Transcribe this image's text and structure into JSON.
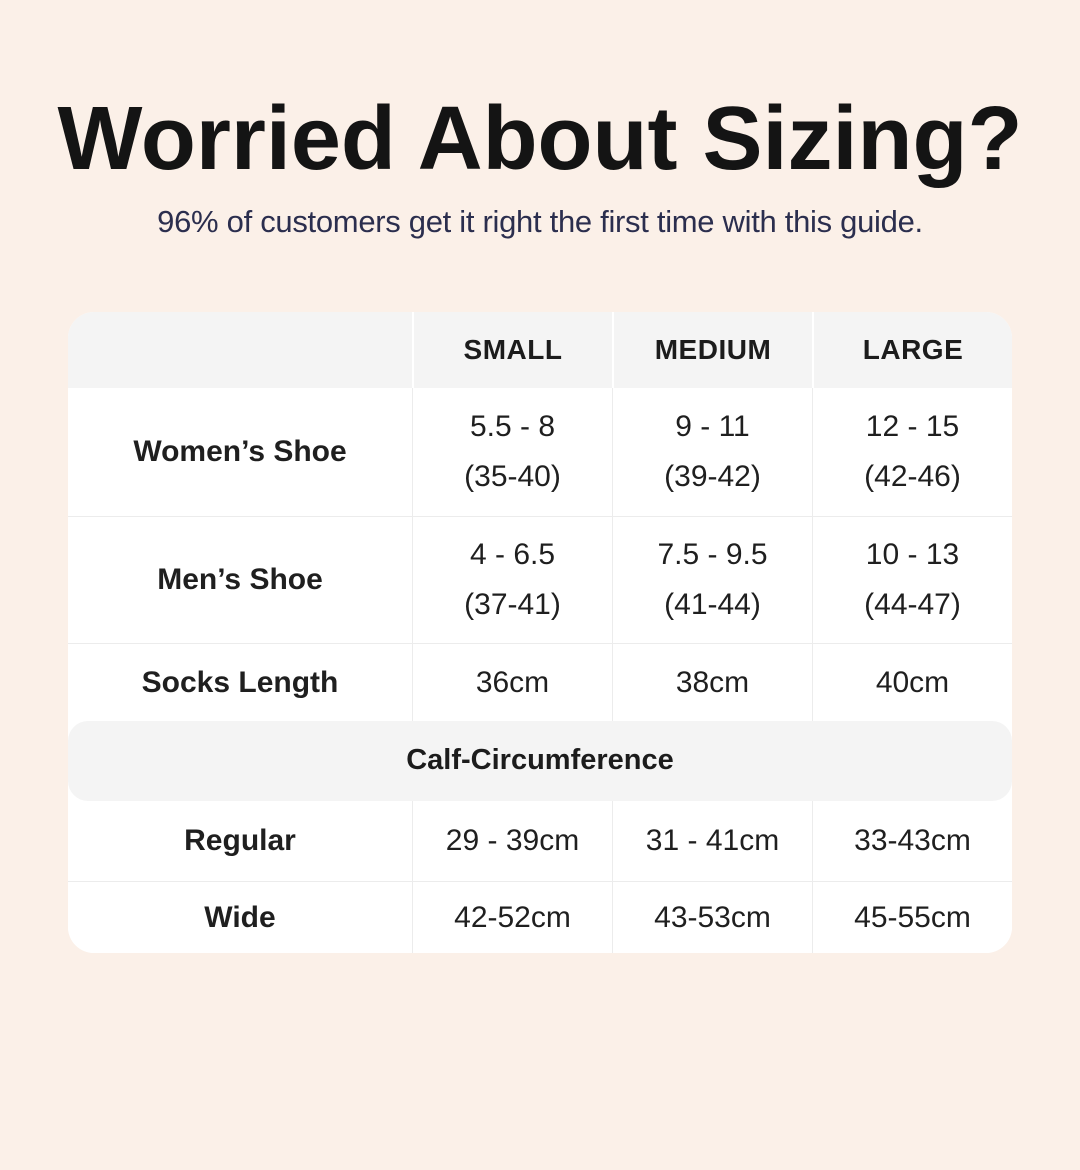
{
  "page": {
    "title": "Worried About Sizing?",
    "subtitle": "96% of customers get it right the first time with this guide."
  },
  "colors": {
    "background": "#FBF0E8",
    "card": "#FFFFFF",
    "header_band": "#F4F4F4",
    "divider": "#ECECEC",
    "title_text": "#141414",
    "subtitle_text": "#2B2E4E",
    "table_text": "#1F1F1F"
  },
  "table": {
    "column_headers": [
      "SMALL",
      "MEDIUM",
      "LARGE"
    ],
    "rows": [
      {
        "label": "Women’s Shoe",
        "small": "5.5 - 8",
        "small_eu": "(35-40)",
        "medium": "9 - 11",
        "medium_eu": "(39-42)",
        "large": "12 - 15",
        "large_eu": "(42-46)"
      },
      {
        "label": "Men’s Shoe",
        "small": "4 - 6.5",
        "small_eu": "(37-41)",
        "medium": "7.5 - 9.5",
        "medium_eu": "(41-44)",
        "large": "10 - 13",
        "large_eu": "(44-47)"
      },
      {
        "label": "Socks Length",
        "small": "36cm",
        "medium": "38cm",
        "large": "40cm"
      }
    ],
    "section_header": "Calf-Circumference",
    "calf_rows": [
      {
        "label": "Regular",
        "small": "29 - 39cm",
        "medium": "31 - 41cm",
        "large": "33-43cm"
      },
      {
        "label": "Wide",
        "small": "42-52cm",
        "medium": "43-53cm",
        "large": "45-55cm"
      }
    ]
  }
}
